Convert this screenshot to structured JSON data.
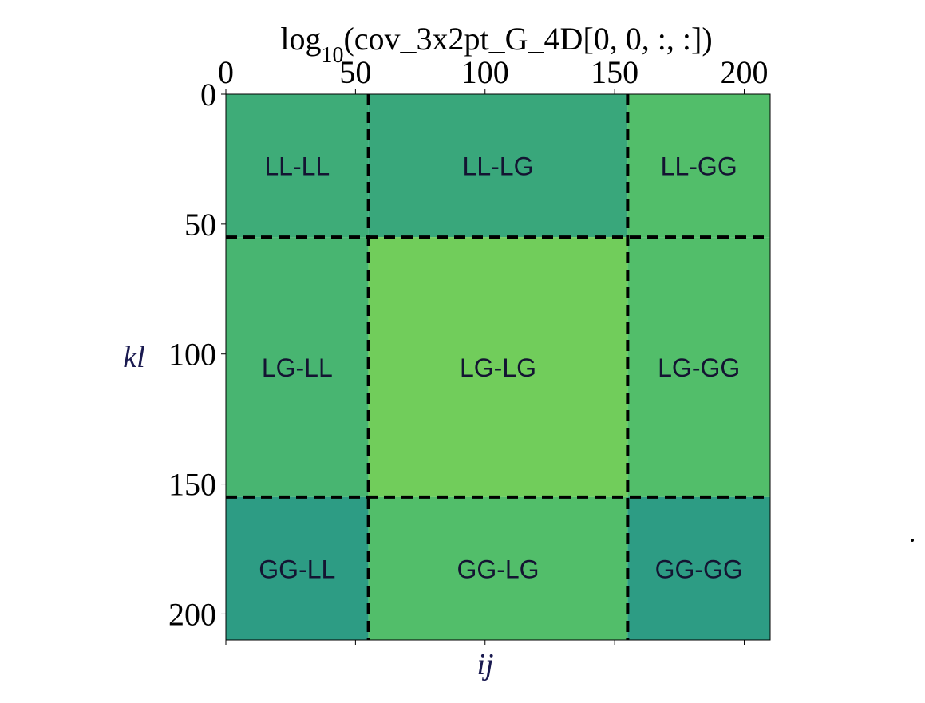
{
  "chart_data": {
    "type": "heatmap",
    "title": "log₁₀(cov_3x2pt_G_4D[0, 0, :, :])",
    "title_parts": {
      "prefix": "log",
      "subscript": "10",
      "suffix": "(cov_3x2pt_G_4D[0, 0, :, :])"
    },
    "xlabel": "ij",
    "ylabel": "kl",
    "x_ticks": [
      0,
      50,
      100,
      150,
      200
    ],
    "y_ticks": [
      0,
      50,
      100,
      150,
      200
    ],
    "xlim": [
      0,
      210
    ],
    "ylim": [
      0,
      210
    ],
    "block_boundaries": [
      55,
      155
    ],
    "blocks": [
      {
        "label": "LL-LL",
        "row": 0,
        "col": 0,
        "value": 0.62
      },
      {
        "label": "LL-LG",
        "row": 0,
        "col": 1,
        "value": 0.6
      },
      {
        "label": "LL-GG",
        "row": 0,
        "col": 2,
        "value": 0.7
      },
      {
        "label": "LG-LL",
        "row": 1,
        "col": 0,
        "value": 0.66
      },
      {
        "label": "LG-LG",
        "row": 1,
        "col": 1,
        "value": 0.78
      },
      {
        "label": "LG-GG",
        "row": 1,
        "col": 2,
        "value": 0.7
      },
      {
        "label": "GG-LL",
        "row": 2,
        "col": 0,
        "value": 0.55
      },
      {
        "label": "GG-LG",
        "row": 2,
        "col": 1,
        "value": 0.7
      },
      {
        "label": "GG-GG",
        "row": 2,
        "col": 2,
        "value": 0.55
      }
    ],
    "colormap": "viridis",
    "grid": false,
    "colors": {
      "divider": "#000000",
      "label": "#141432",
      "axis_label": "#1a1a50"
    }
  }
}
